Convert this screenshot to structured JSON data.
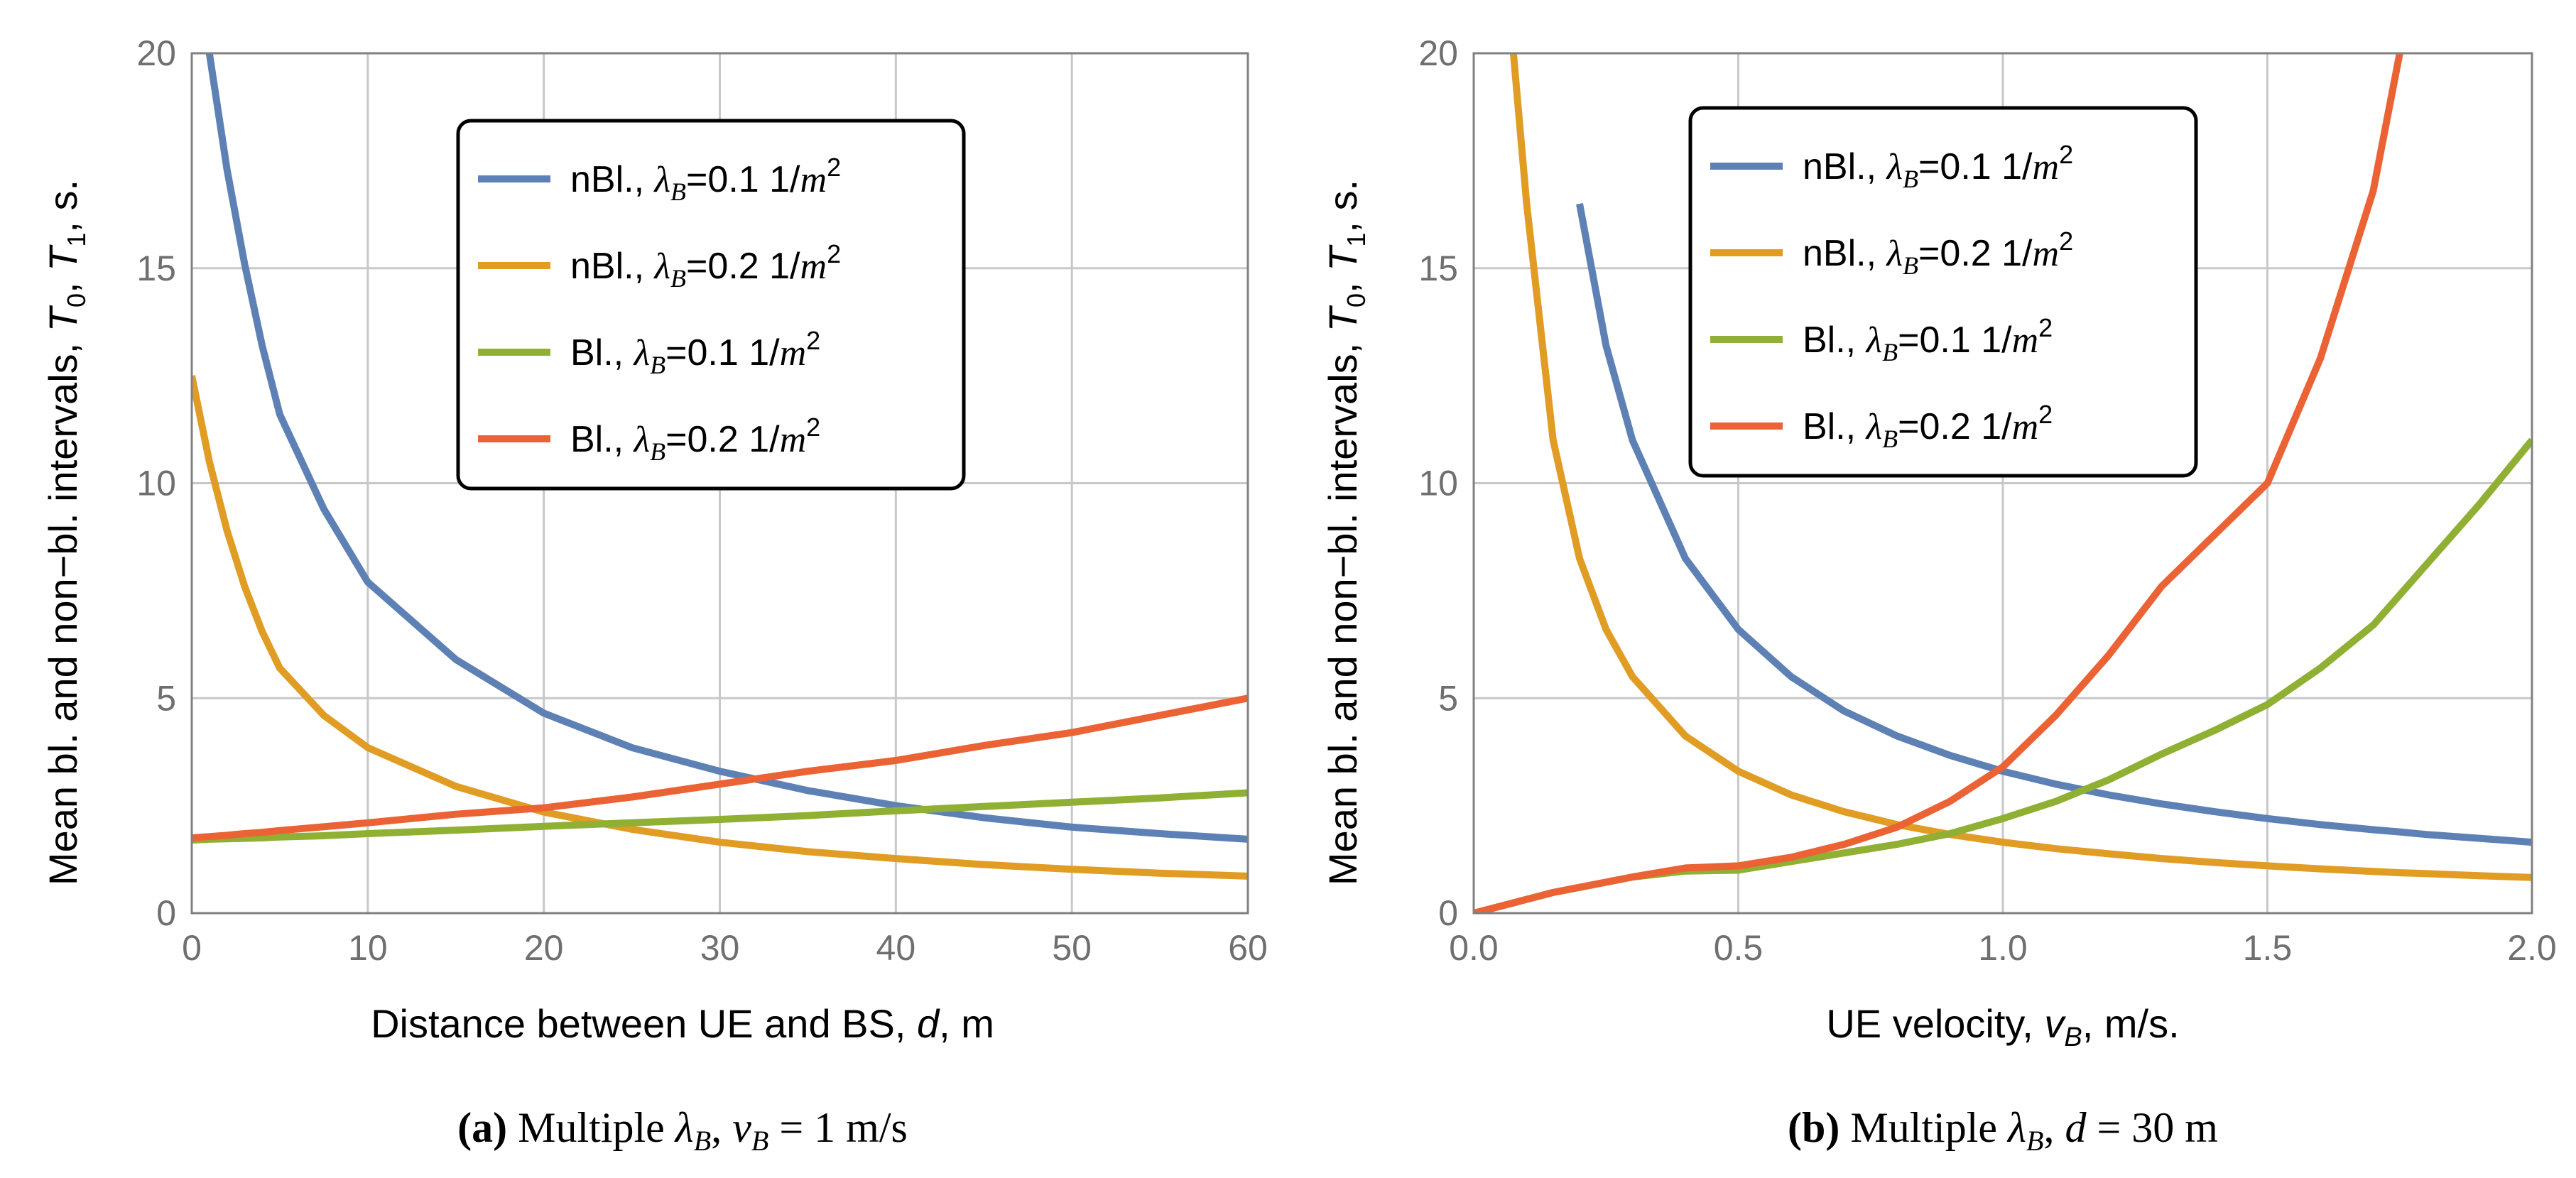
{
  "chart_data": [
    {
      "type": "line",
      "panel": "a",
      "xlabel": "Distance between UE and BS, d, m",
      "ylabel": "Mean bl. and non−bl. intervals, T0, T1, s.",
      "xlim": [
        0,
        60
      ],
      "ylim": [
        0,
        20
      ],
      "xticks": [
        "0",
        "10",
        "20",
        "30",
        "40",
        "50",
        "60"
      ],
      "yticks": [
        "0",
        "5",
        "10",
        "15",
        "20"
      ],
      "x": [
        0,
        1,
        2,
        3,
        4,
        5,
        7.5,
        10,
        15,
        20,
        25,
        30,
        35,
        40,
        45,
        50,
        55,
        60
      ],
      "series": [
        {
          "name": "nBl., λB=0.1 1/m²",
          "color": "#5e81b5",
          "values": [
            null,
            20,
            17.3,
            15.1,
            13.2,
            11.6,
            9.4,
            7.7,
            5.9,
            4.65,
            3.85,
            3.3,
            2.85,
            2.5,
            2.22,
            2.0,
            1.85,
            1.72
          ]
        },
        {
          "name": "nBl., λB=0.2 1/m²",
          "color": "#e19c24",
          "values": [
            12.5,
            10.5,
            8.9,
            7.6,
            6.55,
            5.7,
            4.6,
            3.85,
            2.95,
            2.35,
            1.95,
            1.65,
            1.43,
            1.27,
            1.13,
            1.02,
            0.93,
            0.86
          ]
        },
        {
          "name": "Bl., λB=0.1 1/m²",
          "color": "#8fb032",
          "values": [
            1.7,
            1.72,
            1.73,
            1.74,
            1.75,
            1.77,
            1.8,
            1.85,
            1.93,
            2.02,
            2.1,
            2.18,
            2.27,
            2.38,
            2.48,
            2.58,
            2.68,
            2.8
          ]
        },
        {
          "name": "Bl., λB=0.2 1/m²",
          "color": "#eb6235",
          "values": [
            1.75,
            1.78,
            1.81,
            1.85,
            1.88,
            1.92,
            2.01,
            2.1,
            2.3,
            2.45,
            2.7,
            3.0,
            3.3,
            3.55,
            3.9,
            4.2,
            4.6,
            5.0
          ]
        }
      ],
      "legend_position": "top-right",
      "caption": {
        "tag": "(a)",
        "text": "Multiple λB, vB = 1 m/s"
      }
    },
    {
      "type": "line",
      "panel": "b",
      "xlabel": "UE velocity, vB, m/s.",
      "ylabel": "Mean bl. and non−bl. intervals, T0, T1, s.",
      "xlim": [
        0,
        2
      ],
      "ylim": [
        0,
        20
      ],
      "xticks": [
        "0.0",
        "0.5",
        "1.0",
        "1.5",
        "2.0"
      ],
      "yticks": [
        "0",
        "5",
        "10",
        "15",
        "20"
      ],
      "x": [
        0,
        0.05,
        0.075,
        0.1,
        0.15,
        0.2,
        0.25,
        0.3,
        0.4,
        0.5,
        0.6,
        0.7,
        0.8,
        0.9,
        1.0,
        1.1,
        1.2,
        1.3,
        1.4,
        1.5,
        1.6,
        1.7,
        1.75,
        1.8,
        1.9,
        2.0
      ],
      "series": [
        {
          "name": "nBl., λB=0.1 1/m²",
          "color": "#5e81b5",
          "values": [
            null,
            null,
            null,
            null,
            null,
            16.5,
            13.2,
            11.0,
            8.25,
            6.6,
            5.5,
            4.7,
            4.12,
            3.67,
            3.3,
            3.0,
            2.75,
            2.54,
            2.36,
            2.2,
            2.06,
            1.94,
            1.89,
            1.83,
            1.74,
            1.65
          ]
        },
        {
          "name": "nBl., λB=0.2 1/m²",
          "color": "#e19c24",
          "values": [
            null,
            null,
            20.0,
            16.5,
            11.0,
            8.25,
            6.6,
            5.5,
            4.12,
            3.3,
            2.75,
            2.36,
            2.06,
            1.83,
            1.65,
            1.5,
            1.38,
            1.27,
            1.18,
            1.1,
            1.03,
            0.97,
            0.94,
            0.92,
            0.87,
            0.83
          ]
        },
        {
          "name": "Bl., λB=0.1 1/m²",
          "color": "#8fb032",
          "values": [
            0.0,
            0.16,
            0.24,
            0.32,
            0.48,
            0.6,
            0.72,
            0.84,
            0.98,
            1.0,
            1.2,
            1.4,
            1.6,
            1.85,
            2.2,
            2.6,
            3.1,
            3.7,
            4.25,
            4.85,
            5.7,
            6.7,
            7.4,
            8.1,
            9.5,
            11.0
          ]
        },
        {
          "name": "Bl., λB=0.2 1/m²",
          "color": "#eb6235",
          "values": [
            0.0,
            0.16,
            0.24,
            0.32,
            0.48,
            0.6,
            0.72,
            0.84,
            1.05,
            1.1,
            1.3,
            1.6,
            2.0,
            2.6,
            3.4,
            4.6,
            6.0,
            7.6,
            8.8,
            10.0,
            12.9,
            16.8,
            20.0,
            null,
            null,
            null
          ]
        }
      ],
      "legend_position": "top-center",
      "caption": {
        "tag": "(b)",
        "text": "Multiple λB, d = 30 m"
      }
    }
  ]
}
